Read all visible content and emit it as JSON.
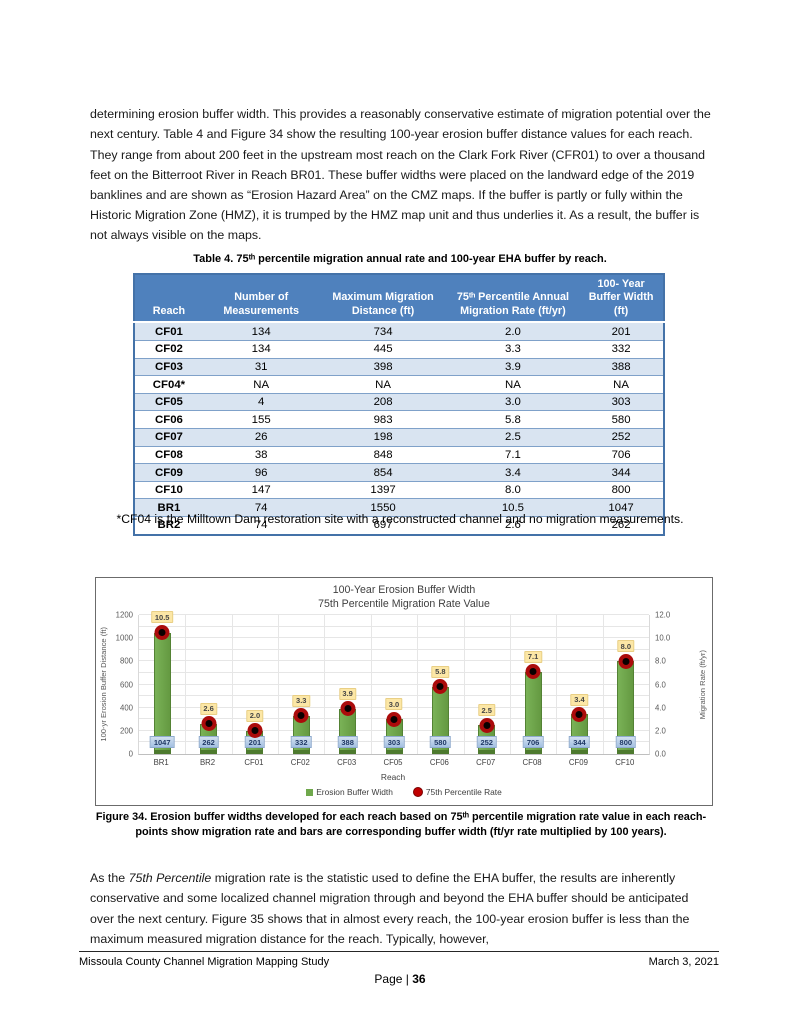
{
  "page": {
    "paragraph1": "determining erosion buffer width. This provides a reasonably conservative estimate of migration potential over the next century. Table 4 and Figure 34 show the resulting 100-year erosion buffer distance values for each reach. They range from about 200 feet in the upstream most reach on the Clark Fork River (CFR01) to over a thousand feet on the Bitterroot River in Reach BR01. These buffer widths were placed on the landward edge of the 2019 banklines and are shown as “Erosion Hazard Area” on the CMZ maps. If the buffer is partly or fully within the Historic Migration Zone (HMZ), it is trumped by the HMZ map unit and thus underlies it. As a result, the buffer is not always visible on the maps.",
    "paragraph2": {
      "pre": "As the ",
      "italic": "75th Percentile",
      "post": " migration rate is the statistic used to define the EHA buffer, the results are inherently conservative and some localized channel migration through and beyond the EHA buffer should be anticipated over the next century. Figure 35 shows that in almost every reach, the 100-year erosion buffer is less than the maximum measured migration distance for the reach. Typically, however,"
    },
    "table": {
      "title": "Table 4. 75ᵗʰ percentile migration annual rate and 100-year EHA buffer by reach.",
      "columns": [
        "Reach",
        "Number of Measurements",
        "Maximum Migration Distance (ft)",
        "75ᵗʰ Percentile Annual Migration Rate (ft/yr)",
        "100- Year Buffer Width (ft)"
      ],
      "rows": [
        [
          "CF01",
          "134",
          "734",
          "2.0",
          "201"
        ],
        [
          "CF02",
          "134",
          "445",
          "3.3",
          "332"
        ],
        [
          "CF03",
          "31",
          "398",
          "3.9",
          "388"
        ],
        [
          "CF04*",
          "NA",
          "NA",
          "NA",
          "NA"
        ],
        [
          "CF05",
          "4",
          "208",
          "3.0",
          "303"
        ],
        [
          "CF06",
          "155",
          "983",
          "5.8",
          "580"
        ],
        [
          "CF07",
          "26",
          "198",
          "2.5",
          "252"
        ],
        [
          "CF08",
          "38",
          "848",
          "7.1",
          "706"
        ],
        [
          "CF09",
          "96",
          "854",
          "3.4",
          "344"
        ],
        [
          "CF10",
          "147",
          "1397",
          "8.0",
          "800"
        ],
        [
          "BR1",
          "74",
          "1550",
          "10.5",
          "1047"
        ],
        [
          "BR2",
          "74",
          "697",
          "2.6",
          "262"
        ]
      ],
      "footnote": "*CF04 is the Milltown Dam restoration site with a reconstructed channel and no migration measurements."
    },
    "figure_caption": "Figure 34. Erosion buffer widths developed for each reach based on 75ᵗʰ percentile migration rate value in each reach- points show migration rate and bars are corresponding buffer width (ft/yr rate multiplied by 100 years).",
    "footer": {
      "left": "Missoula County Channel Migration Mapping Study",
      "right": "March 3, 2021",
      "page_prefix": "Page | ",
      "page_number": "36"
    }
  },
  "chart_data": {
    "type": "bar",
    "title": "100-Year Erosion Buffer Width",
    "subtitle": "75th Percentile Migration Rate Value",
    "categories": [
      "BR1",
      "BR2",
      "CF01",
      "CF02",
      "CF03",
      "CF05",
      "CF06",
      "CF07",
      "CF08",
      "CF09",
      "CF10"
    ],
    "series": [
      {
        "name": "Erosion Buffer Width",
        "axis": "left",
        "values": [
          1047,
          262,
          201,
          332,
          388,
          303,
          580,
          252,
          706,
          344,
          800
        ]
      },
      {
        "name": "75th Percentile Rate",
        "axis": "right",
        "values": [
          10.5,
          2.6,
          2.0,
          3.3,
          3.9,
          3.0,
          5.8,
          2.5,
          7.1,
          3.4,
          8.0
        ]
      }
    ],
    "xlabel": "Reach",
    "ylabel_left": "100-yr Erosion Buffer Distance (ft)",
    "ylabel_right": "Migration Rate (ft/yr)",
    "ylim_left": [
      0,
      1200
    ],
    "ylim_right": [
      0,
      12
    ],
    "yticks_left": [
      0,
      200,
      400,
      600,
      800,
      1000,
      1200
    ],
    "yticks_right": [
      "0.0",
      "2.0",
      "4.0",
      "6.0",
      "8.0",
      "10.0",
      "12.0"
    ],
    "grid": true,
    "legend_position": "bottom",
    "colors": {
      "bar": "#6FA84C",
      "bar_border": "#538234",
      "bar_base": "#4D7A2E",
      "marker_ring": "#AB0B0B",
      "marker_center": "#0A0000",
      "rate_label_bg": "#FCE7A6",
      "bar_label_bg": "#A3C0E2",
      "table_header_bg": "#4F81BD",
      "table_row_alt_bg": "#D9E4F1"
    }
  }
}
